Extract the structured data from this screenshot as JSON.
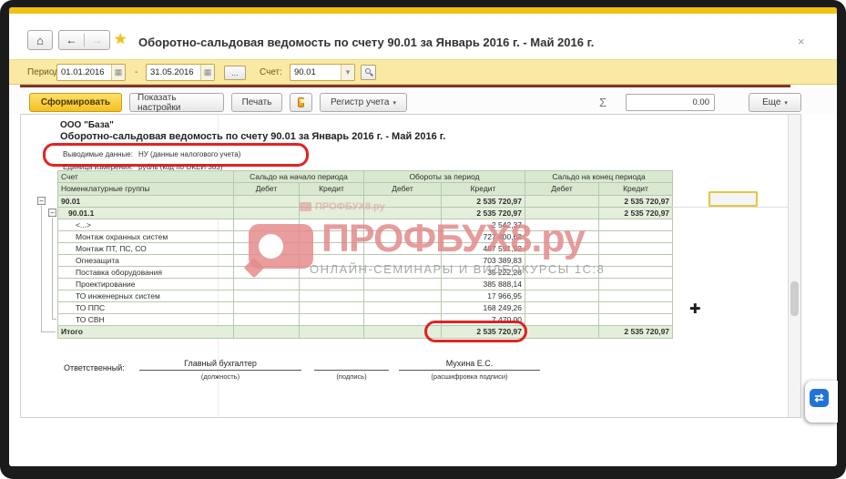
{
  "window": {
    "title": "Оборотно-сальдовая ведомость по счету 90.01 за Январь 2016 г. - Май 2016 г.",
    "close": "×"
  },
  "nav": {
    "home": "⌂",
    "back": "←",
    "forward": "→",
    "favorite": "★"
  },
  "filters": {
    "period_label": "Период:",
    "period_from": "01.01.2016",
    "period_to": "31.05.2016",
    "range_separator": "-",
    "calendar": "▦",
    "more_button": "...",
    "account_label": "Счет:",
    "account": "90.01",
    "dropdown": "▾"
  },
  "toolbar": {
    "generate": "Сформировать",
    "settings": "Показать настройки",
    "print": "Печать",
    "register": "Регистр учета",
    "dropdown": "▾",
    "sigma": "Σ",
    "sum": "0.00",
    "more": "Еще"
  },
  "report": {
    "company": "ООО \"База\"",
    "title": "Оборотно-сальдовая ведомость по счету 90.01 за Январь 2016 г. - Май 2016 г.",
    "meta": {
      "output_label": "Выводимые данные:",
      "output_value": "НУ (данные налогового учета)",
      "unit_label": "Единица измерения:",
      "unit_value": "рубль (код по ОКЕИ 383)"
    },
    "table": {
      "columns": {
        "account": "Счет",
        "groups": "Номенклатурные группы",
        "begin": "Сальдо на начало периода",
        "turnover": "Обороты за период",
        "end": "Сальдо на конец периода",
        "debit": "Дебет",
        "credit": "Кредит"
      },
      "rows": [
        {
          "label": "90.01",
          "level": 0,
          "green": true,
          "bold": true,
          "turn_credit": "2 535 720,97",
          "end_credit": "2 535 720,97"
        },
        {
          "label": "90.01.1",
          "level": 1,
          "green": true,
          "bold": true,
          "turn_credit": "2 535 720,97",
          "end_credit": "2 535 720,97"
        },
        {
          "label": "<...>",
          "level": 2,
          "turn_credit": "2 542,37"
        },
        {
          "label": "Монтаж охранных систем",
          "level": 2,
          "turn_credit": "727 400,62"
        },
        {
          "label": "Монтаж ПТ, ПС, СО",
          "level": 2,
          "turn_credit": "487 591,52"
        },
        {
          "label": "Огнезащита",
          "level": 2,
          "turn_credit": "703 389,83"
        },
        {
          "label": "Поставка оборудования",
          "level": 2,
          "turn_credit": "35 222,28"
        },
        {
          "label": "Проектирование",
          "level": 2,
          "turn_credit": "385 888,14"
        },
        {
          "label": "ТО инженерных систем",
          "level": 2,
          "turn_credit": "17 966,95"
        },
        {
          "label": "ТО ППС",
          "level": 2,
          "turn_credit": "168 249,26"
        },
        {
          "label": "ТО СВН",
          "level": 2,
          "turn_credit": "7 470,00"
        },
        {
          "label": "Итого",
          "level": 0,
          "green": true,
          "bold": true,
          "total": true,
          "turn_credit": "2 535 720,97",
          "end_credit": "2 535 720,97"
        }
      ]
    },
    "signatures": {
      "responsible_label": "Ответственный:",
      "position_value": "Главный бухгалтер",
      "position_caption": "(должность)",
      "signature_caption": "(подпись)",
      "name_value": "Мухина Е.С.",
      "name_caption": "(расшифровка подписи)"
    }
  },
  "watermark": {
    "brand_small": "ПРОФБУХ8.ру",
    "brand": "ПРОФБУХ8.ру",
    "tagline": "ОНЛАЙН-СЕМИНАРЫ И ВИДЕОКУРСЫ 1С:8"
  },
  "cursor": {
    "move": "✚"
  },
  "side_tab": {
    "icon": "⇄"
  },
  "colors": {
    "accent_yellow": "#f2c211",
    "panel_yellow": "#fae9a2",
    "header_green": "#d9e8d0",
    "row_green": "#e3efdb",
    "annotation_red": "#df1010",
    "watermark_pink": "#de8585"
  }
}
